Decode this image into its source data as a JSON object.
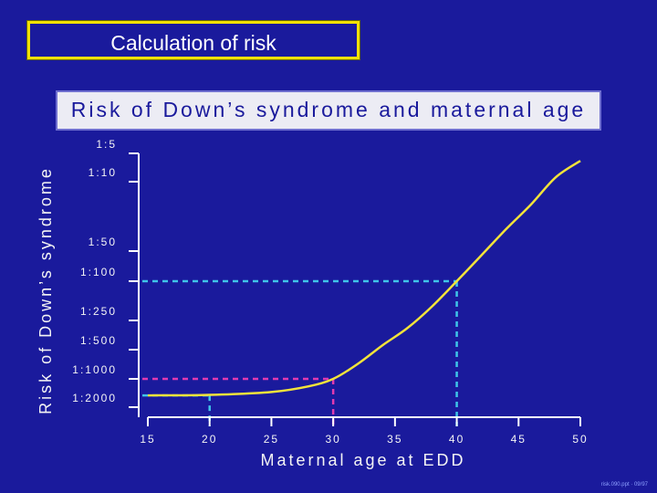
{
  "slide": {
    "title": "Calculation of risk"
  },
  "chart_data": {
    "type": "line",
    "title": "Risk of Down’s syndrome and maternal age",
    "xlabel": "Maternal age at EDD",
    "ylabel": "Risk of Down’s syndrome",
    "x_ticks": [
      15,
      20,
      25,
      30,
      35,
      40,
      45,
      50
    ],
    "y_ticks": [
      "1:5",
      "1:10",
      "1:50",
      "1:100",
      "1:250",
      "1:500",
      "1:1000",
      "1:2000"
    ],
    "xlim": [
      15,
      50
    ],
    "y_scale": "log-odds (1 in N)",
    "series": [
      {
        "color": "#f2e33a",
        "points": [
          {
            "x": 15,
            "y": 1500
          },
          {
            "x": 20,
            "y": 1480
          },
          {
            "x": 25,
            "y": 1380
          },
          {
            "x": 28,
            "y": 1200
          },
          {
            "x": 30,
            "y": 1000
          },
          {
            "x": 32,
            "y": 700
          },
          {
            "x": 34,
            "y": 450
          },
          {
            "x": 36,
            "y": 300
          },
          {
            "x": 38,
            "y": 180
          },
          {
            "x": 40,
            "y": 100
          },
          {
            "x": 42,
            "y": 55
          },
          {
            "x": 44,
            "y": 30
          },
          {
            "x": 46,
            "y": 17
          },
          {
            "x": 48,
            "y": 9
          },
          {
            "x": 50,
            "y": 6
          }
        ]
      }
    ],
    "reference_lines": [
      {
        "x": 20,
        "y": 1500,
        "color": "#3fc4e8"
      },
      {
        "x": 30,
        "y": 1000,
        "color": "#e03ab0"
      },
      {
        "x": 40,
        "y": 100,
        "color": "#3fc4e8"
      }
    ]
  },
  "footer": {
    "note": "risk.090.ppt · 09/97"
  }
}
